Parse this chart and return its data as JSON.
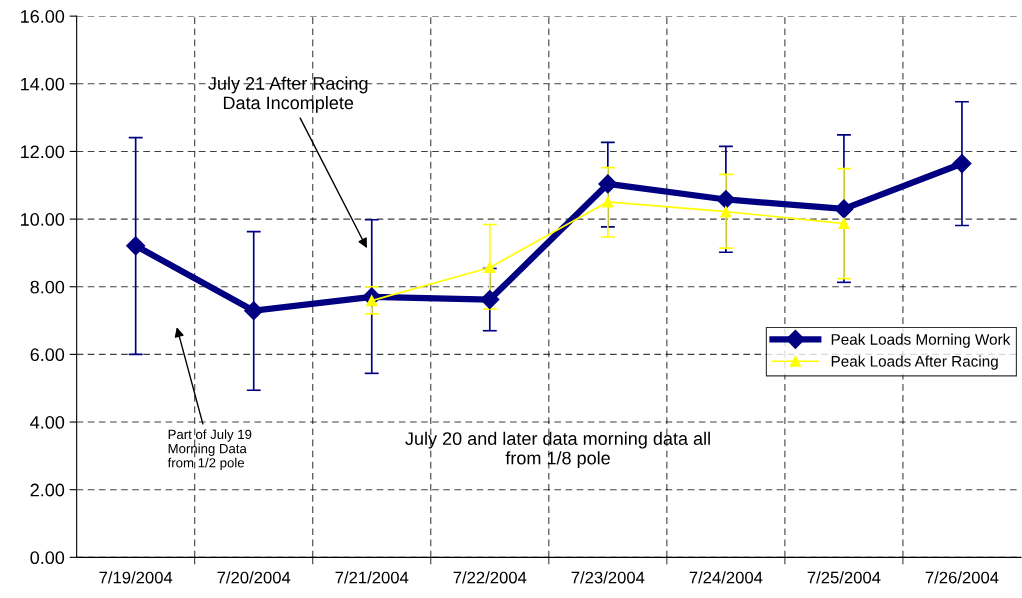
{
  "chart_data": {
    "type": "line",
    "categories": [
      "7/19/2004",
      "7/20/2004",
      "7/21/2004",
      "7/22/2004",
      "7/23/2004",
      "7/24/2004",
      "7/25/2004",
      "7/26/2004"
    ],
    "series": [
      {
        "name": "Peak Loads Morning Work",
        "color": "#000080",
        "marker": "diamond",
        "values": [
          9.21,
          7.29,
          7.7,
          7.62,
          11.04,
          10.58,
          10.3,
          11.64
        ],
        "errors": [
          [
            6.0,
            12.41
          ],
          [
            4.94,
            9.63
          ],
          [
            5.44,
            9.98
          ],
          [
            6.7,
            8.54
          ],
          [
            9.77,
            12.27
          ],
          [
            9.02,
            12.15
          ],
          [
            8.13,
            12.49
          ],
          [
            9.81,
            13.47
          ]
        ]
      },
      {
        "name": "Peak Loads After Racing",
        "color": "#ffff00",
        "marker": "triangle",
        "values": [
          null,
          null,
          7.59,
          8.57,
          10.51,
          10.22,
          9.87,
          null
        ],
        "errors": [
          null,
          null,
          [
            7.2,
            8.0
          ],
          [
            7.34,
            9.84
          ],
          [
            9.47,
            11.52
          ],
          [
            9.14,
            11.32
          ],
          [
            8.24,
            11.49
          ],
          null
        ]
      }
    ],
    "ylim": [
      0,
      16
    ],
    "yticks": [
      {
        "value": 0,
        "label": "0.00"
      },
      {
        "value": 2,
        "label": "2.00"
      },
      {
        "value": 4,
        "label": "4.00"
      },
      {
        "value": 6,
        "label": "6.00"
      },
      {
        "value": 8,
        "label": "8.00"
      },
      {
        "value": 10,
        "label": "10.00"
      },
      {
        "value": 12,
        "label": "12.00"
      },
      {
        "value": 14,
        "label": "14.00"
      },
      {
        "value": 16,
        "label": "16.00"
      }
    ],
    "grid": true,
    "legend": "right",
    "line_style": "solid",
    "annotations": [
      "July 21 After Racing\nData Incomplete",
      "Part of July 19\nMorning Data\nfrom 1/2 pole",
      "July 20 and later data morning data all\nfrom 1/8 pole"
    ]
  }
}
